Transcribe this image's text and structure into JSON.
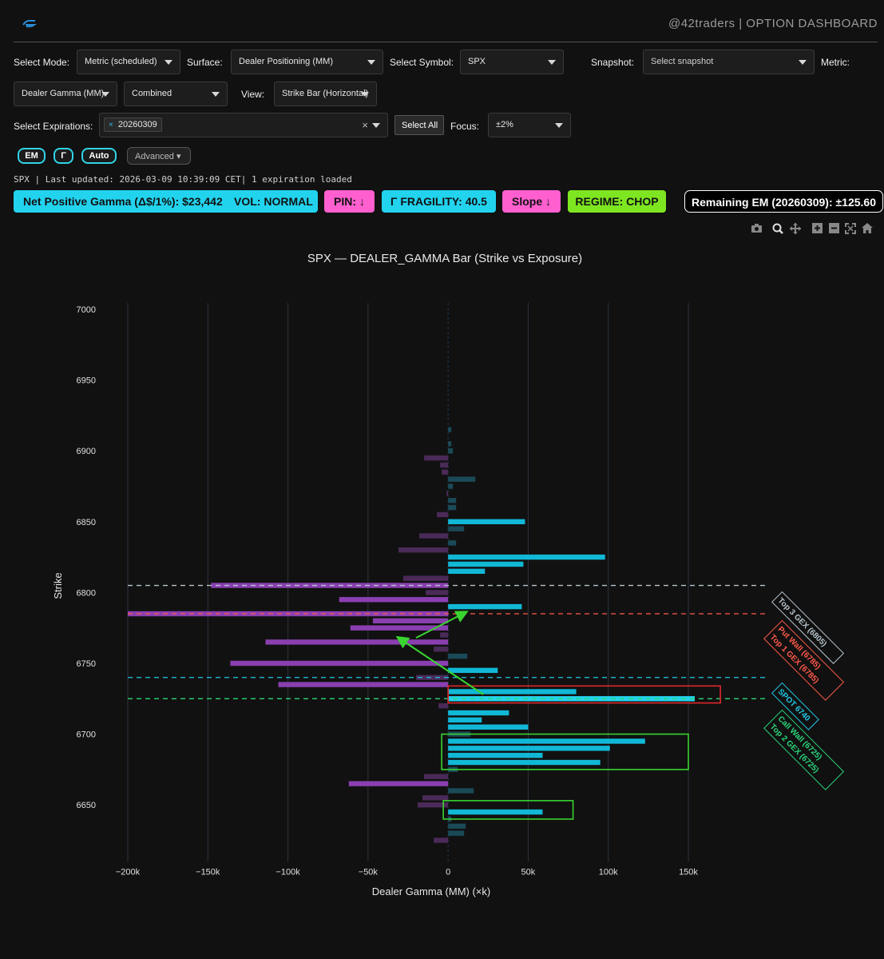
{
  "header": {
    "brand": "@42traders | OPTION DASHBOARD"
  },
  "controls": {
    "mode_label": "Select Mode:",
    "mode_value": "Metric (scheduled)",
    "surface_label": "Surface:",
    "surface_value": "Dealer Positioning (MM)",
    "symbol_label": "Select Symbol:",
    "symbol_value": "SPX",
    "snapshot_label": "Snapshot:",
    "snapshot_placeholder": "Select snapshot",
    "metric_label": "Metric:",
    "metric_value": "Dealer Gamma (MM)",
    "combine_value": "Combined",
    "view_label": "View:",
    "view_value": "Strike Bar (Horizontal)",
    "expirations_label": "Select Expirations:",
    "expiration_chip": "20260309",
    "chip_remove": "×",
    "clear": "×",
    "select_all": "Select All",
    "focus_label": "Focus:",
    "focus_value": "±2%",
    "toggle_em": "EM",
    "toggle_gamma": "Γ",
    "toggle_auto": "Auto",
    "advanced": "Advanced ▾"
  },
  "status": "SPX | Last updated: 2026-03-09 10:39:09 CET| 1 expiration loaded",
  "badges": {
    "net_gamma": "Net Positive Gamma (Δ$/1%): $23,442",
    "vol": "VOL: NORMAL",
    "pin": "PIN: ↓",
    "fragility": "Γ FRAGILITY: 40.5",
    "slope": "Slope ↓",
    "regime": "REGIME: CHOP",
    "remaining_em": "Remaining EM (20260309): ±125.60"
  },
  "colors": {
    "cyan": "#22d3ee",
    "pink": "#ff5fcf",
    "lime": "#7ee621",
    "purple": "#8a3fb0",
    "red_box": "#e0272a",
    "green_box": "#39d430"
  },
  "toolbar_icons": [
    "camera-icon",
    "zoom-icon",
    "pan-icon",
    "zoom-in-icon",
    "zoom-out-icon",
    "autoscale-icon",
    "home-icon"
  ],
  "chart_data": {
    "type": "bar",
    "orientation": "horizontal",
    "title": "SPX — DEALER_GAMMA Bar (Strike vs Exposure)",
    "xlabel": "Dealer Gamma (MM) (×k)",
    "ylabel": "Strike",
    "xlim": [
      -200,
      150
    ],
    "ylim": [
      6620,
      7000
    ],
    "x_ticks": [
      "−200k",
      "−150k",
      "−100k",
      "−50k",
      "0",
      "50k",
      "100k",
      "150k"
    ],
    "x_tick_values": [
      -200,
      -150,
      -100,
      -50,
      0,
      50,
      100,
      150
    ],
    "y_ticks": [
      6650,
      6700,
      6750,
      6800,
      6850,
      6900,
      6950,
      7000
    ],
    "grid": true,
    "bars": [
      {
        "strike": 6915,
        "value": 2
      },
      {
        "strike": 6905,
        "value": 2
      },
      {
        "strike": 6900,
        "value": 3
      },
      {
        "strike": 6895,
        "value": -15
      },
      {
        "strike": 6890,
        "value": -5
      },
      {
        "strike": 6885,
        "value": -4
      },
      {
        "strike": 6880,
        "value": 17
      },
      {
        "strike": 6875,
        "value": 3
      },
      {
        "strike": 6870,
        "value": -1
      },
      {
        "strike": 6865,
        "value": 5
      },
      {
        "strike": 6860,
        "value": 5
      },
      {
        "strike": 6855,
        "value": -7
      },
      {
        "strike": 6850,
        "value": 48
      },
      {
        "strike": 6845,
        "value": 10
      },
      {
        "strike": 6840,
        "value": -18
      },
      {
        "strike": 6835,
        "value": 5
      },
      {
        "strike": 6830,
        "value": -31
      },
      {
        "strike": 6825,
        "value": 98
      },
      {
        "strike": 6820,
        "value": 47
      },
      {
        "strike": 6815,
        "value": 23
      },
      {
        "strike": 6810,
        "value": -28
      },
      {
        "strike": 6805,
        "value": -148
      },
      {
        "strike": 6800,
        "value": -14
      },
      {
        "strike": 6795,
        "value": -68
      },
      {
        "strike": 6790,
        "value": 46
      },
      {
        "strike": 6785,
        "value": -200
      },
      {
        "strike": 6780,
        "value": -47
      },
      {
        "strike": 6775,
        "value": -61
      },
      {
        "strike": 6770,
        "value": -5
      },
      {
        "strike": 6765,
        "value": -114
      },
      {
        "strike": 6760,
        "value": -9
      },
      {
        "strike": 6755,
        "value": 12
      },
      {
        "strike": 6750,
        "value": -136
      },
      {
        "strike": 6745,
        "value": 31
      },
      {
        "strike": 6740,
        "value": -20
      },
      {
        "strike": 6735,
        "value": -106
      },
      {
        "strike": 6730,
        "value": 80
      },
      {
        "strike": 6725,
        "value": 154
      },
      {
        "strike": 6720,
        "value": -6
      },
      {
        "strike": 6715,
        "value": 38
      },
      {
        "strike": 6710,
        "value": 21
      },
      {
        "strike": 6705,
        "value": 50
      },
      {
        "strike": 6700,
        "value": 14
      },
      {
        "strike": 6695,
        "value": 123
      },
      {
        "strike": 6690,
        "value": 101
      },
      {
        "strike": 6685,
        "value": 59
      },
      {
        "strike": 6680,
        "value": 95
      },
      {
        "strike": 6675,
        "value": 6
      },
      {
        "strike": 6670,
        "value": -15
      },
      {
        "strike": 6665,
        "value": -62
      },
      {
        "strike": 6660,
        "value": 16
      },
      {
        "strike": 6655,
        "value": -16
      },
      {
        "strike": 6650,
        "value": -19
      },
      {
        "strike": 6645,
        "value": 59
      },
      {
        "strike": 6640,
        "value": 2
      },
      {
        "strike": 6635,
        "value": 11
      },
      {
        "strike": 6630,
        "value": 10
      },
      {
        "strike": 6625,
        "value": -9
      }
    ],
    "highlight_strikes": [
      6850,
      6825,
      6820,
      6815,
      6790,
      6745,
      6730,
      6725,
      6715,
      6710,
      6705,
      6695,
      6690,
      6685,
      6680,
      6645
    ],
    "reference_lines": [
      {
        "strike": 6805,
        "label": "Top 3 GEX (6805)",
        "color": "#b8c4cc"
      },
      {
        "strike": 6785,
        "label": "Put Wall (6785)\nTop 1 GEX (6785)",
        "color": "#ff5a4a"
      },
      {
        "strike": 6740,
        "label": "SPOT 6740",
        "color": "#22c8e6"
      },
      {
        "strike": 6725,
        "label": "Call Wall (6725)\nTop 2 GEX (6725)",
        "color": "#2bd67a"
      }
    ],
    "annotations": {
      "red_box": {
        "strike_range": [
          6722,
          6734
        ],
        "x_range": [
          0,
          170
        ]
      },
      "green_boxes": [
        {
          "strike_range": [
            6675,
            6700
          ],
          "x_range": [
            -4,
            150
          ]
        },
        {
          "strike_range": [
            6640,
            6653
          ],
          "x_range": [
            -3,
            78
          ]
        }
      ],
      "arrows": [
        {
          "from": [
            22,
            6728
          ],
          "to": [
            -31,
            6768
          ]
        },
        {
          "from": [
            -20,
            6768
          ],
          "to": [
            11,
            6786
          ]
        }
      ]
    }
  }
}
